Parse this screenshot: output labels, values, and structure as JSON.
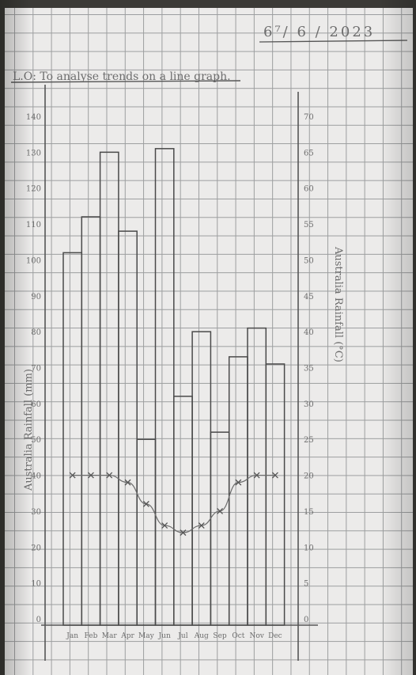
{
  "page": {
    "date": "6⁷/ 6 / 2023",
    "objective": "L.O: To analyse trends on a line graph."
  },
  "chart_data": {
    "type": "bar",
    "categories": [
      "Jan",
      "Feb",
      "Mar",
      "Apr",
      "May",
      "Jun",
      "Jul",
      "Aug",
      "Sep",
      "Oct",
      "Nov",
      "Dec"
    ],
    "series": [
      {
        "kind": "bar",
        "axis": "left",
        "values": [
          102,
          112,
          130,
          108,
          50,
          131,
          62,
          80,
          52,
          73,
          81,
          71
        ]
      },
      {
        "kind": "line",
        "axis": "right",
        "marker": "x",
        "values": [
          20,
          20,
          20,
          19,
          16,
          13,
          12,
          13,
          15,
          19,
          20,
          20
        ]
      }
    ],
    "ylabel": "Australia Rainfall (mm)",
    "y2label": "Australia Rainfall (°C)",
    "ylim": [
      0,
      140
    ],
    "y2lim": [
      0,
      70
    ],
    "yticks": [
      0,
      10,
      20,
      30,
      40,
      50,
      60,
      70,
      80,
      90,
      100,
      110,
      120,
      130,
      140
    ],
    "y2ticks": [
      0,
      5,
      10,
      15,
      20,
      25,
      30,
      35,
      40,
      45,
      50,
      55,
      60,
      65,
      70
    ],
    "grid": true,
    "colors": {
      "ink": "#4a4a4a",
      "pencil": "#6d6d6d",
      "paper": "#ecebea",
      "grid": "#9c9e9f"
    }
  }
}
